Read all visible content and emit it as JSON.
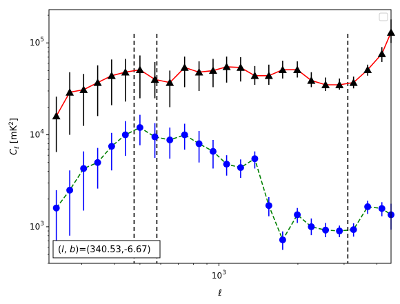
{
  "chart_data": {
    "type": "scatter",
    "title": "",
    "xlabel": "ℓ",
    "ylabel": "C_ℓ  [mK²]",
    "xscale": "log",
    "yscale": "log",
    "xlim": [
      225,
      4530
    ],
    "ylim": [
      400,
      230000
    ],
    "x_tick_labels": [
      {
        "value": 1000,
        "base": "10",
        "exp": "3"
      }
    ],
    "y_tick_labels": [
      {
        "value": 1000,
        "base": "10",
        "exp": "3"
      },
      {
        "value": 10000,
        "base": "10",
        "exp": "4"
      },
      {
        "value": 100000,
        "base": "10",
        "exp": "5"
      }
    ],
    "grid": false,
    "legend": {
      "placement": "top-right",
      "entries": []
    },
    "annotation": "(l, b)=(340.53,-6.67)",
    "annotation_parts": {
      "l": "l",
      "b": "b",
      "values": "=(340.53,-6.67)"
    },
    "vlines": [
      475,
      580,
      3100
    ],
    "series": [
      {
        "color": "#000000",
        "line_color": "#ff0000",
        "line_style": "solid",
        "marker": "triangle",
        "x": [
          240,
          270,
          305,
          345,
          390,
          440,
          500,
          570,
          650,
          740,
          840,
          950,
          1070,
          1210,
          1370,
          1550,
          1750,
          1990,
          2250,
          2550,
          2880,
          3260,
          3690,
          4180
        ],
        "y": [
          16000,
          29000,
          31000,
          37000,
          44000,
          48000,
          51000,
          40000,
          37000,
          54000,
          48000,
          50000,
          55000,
          54000,
          44000,
          44000,
          51000,
          51000,
          39000,
          35000,
          35000,
          37000,
          51000,
          76000
        ],
        "yerr_low": [
          6500,
          10000,
          12500,
          16000,
          21000,
          23000,
          25000,
          25000,
          20000,
          33000,
          30000,
          33000,
          37000,
          38000,
          35000,
          35000,
          41000,
          42000,
          33000,
          30000,
          31000,
          32000,
          44000,
          62000
        ],
        "yerr_high": [
          26000,
          48000,
          46000,
          57000,
          66000,
          67000,
          73000,
          62000,
          50000,
          71000,
          63000,
          67000,
          71000,
          70000,
          56000,
          58000,
          64000,
          63000,
          48000,
          42000,
          41000,
          43000,
          58000,
          90000
        ],
        "x_extra": [
          4530
        ],
        "y_extra": [
          130000
        ],
        "yerr_low_extra": [
          100000
        ],
        "yerr_high_extra": [
          180000
        ]
      },
      {
        "color": "#0000ff",
        "line_color": "#008000",
        "line_style": "dashed",
        "marker": "circle",
        "x": [
          240,
          270,
          305,
          345,
          390,
          440,
          500,
          570,
          650,
          740,
          840,
          950,
          1070,
          1210,
          1370,
          1550,
          1750,
          1990,
          2250,
          2550,
          2880,
          3260,
          3690,
          4180
        ],
        "y": [
          1600,
          2500,
          4300,
          5000,
          7500,
          10000,
          12000,
          9500,
          8800,
          10000,
          8000,
          6600,
          4800,
          4400,
          5500,
          1700,
          720,
          1350,
          1000,
          920,
          900,
          930,
          1650,
          1580
        ],
        "yerr_low": [
          700,
          800,
          1500,
          2600,
          4100,
          5900,
          7700,
          5600,
          5500,
          6900,
          5000,
          4300,
          3600,
          3400,
          4300,
          1300,
          560,
          1100,
          810,
          770,
          770,
          780,
          1380,
          1300
        ],
        "yerr_high": [
          2500,
          4100,
          6600,
          7200,
          10500,
          14100,
          16500,
          13400,
          12000,
          13200,
          11000,
          8800,
          6000,
          5400,
          6600,
          2100,
          890,
          1600,
          1230,
          1100,
          1030,
          1090,
          1920,
          1850
        ],
        "x_extra": [
          4530
        ],
        "y_extra": [
          1350
        ],
        "yerr_low_extra": [
          930
        ],
        "yerr_high_extra": [
          1780
        ]
      }
    ]
  }
}
